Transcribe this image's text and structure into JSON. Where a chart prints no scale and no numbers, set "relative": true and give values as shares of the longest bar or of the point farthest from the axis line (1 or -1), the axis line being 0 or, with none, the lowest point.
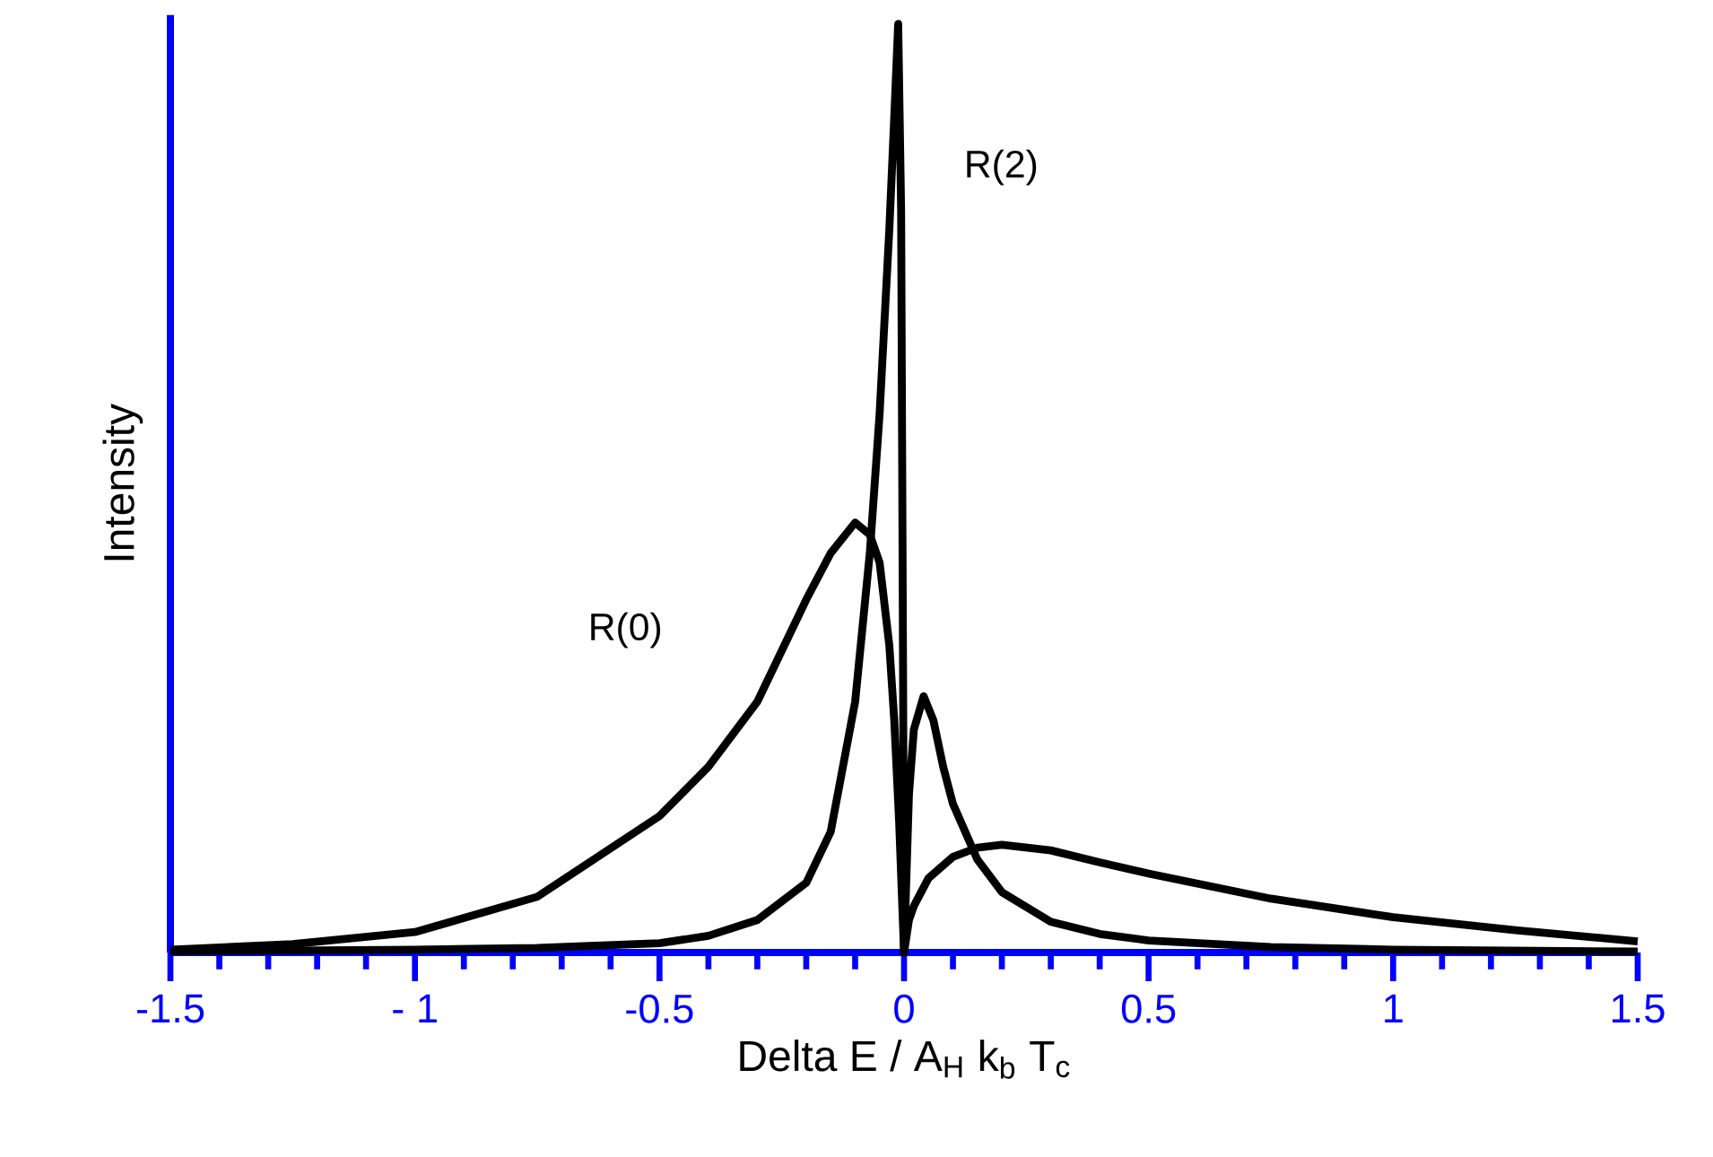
{
  "chart_data": {
    "type": "line",
    "relative": true,
    "xlabel": "Delta E / A$_{H}$ k$_{b}$ T$_{c}$",
    "ylabel": "Intensity",
    "xlim": [
      -1.5,
      1.5
    ],
    "xticks": [
      -1.5,
      {
        "value": -1.4,
        "label": null
      },
      {
        "value": -1.3,
        "label": null
      },
      {
        "value": -1.2,
        "label": null
      },
      {
        "value": -1.1,
        "label": null
      },
      {
        "value": -1,
        "label": "- 1"
      },
      {
        "value": -0.9,
        "label": null
      },
      {
        "value": -0.8,
        "label": null
      },
      {
        "value": -0.7,
        "label": null
      },
      {
        "value": -0.6,
        "label": null
      },
      -0.5,
      {
        "value": -0.4,
        "label": null
      },
      {
        "value": -0.3,
        "label": null
      },
      {
        "value": -0.2,
        "label": null
      },
      {
        "value": -0.1,
        "label": null
      },
      0,
      {
        "value": 0.1,
        "label": null
      },
      {
        "value": 0.2,
        "label": null
      },
      {
        "value": 0.3,
        "label": null
      },
      {
        "value": 0.4,
        "label": null
      },
      0.5,
      {
        "value": 0.6,
        "label": null
      },
      {
        "value": 0.7,
        "label": null
      },
      {
        "value": 0.8,
        "label": null
      },
      {
        "value": 0.9,
        "label": null
      },
      1,
      {
        "value": 1.1,
        "label": null
      },
      {
        "value": 1.2,
        "label": null
      },
      {
        "value": 1.3,
        "label": null
      },
      {
        "value": 1.4,
        "label": null
      },
      1.5
    ],
    "tick_labels": "x",
    "marker": "none",
    "line_style": "solid",
    "series": [
      {
        "name": "R(0)",
        "color": "#000000",
        "x": [
          -1.5,
          -1.25,
          -1.0,
          -0.75,
          -0.5,
          -0.4,
          -0.3,
          -0.2,
          -0.15,
          -0.1,
          -0.07,
          -0.05,
          -0.03,
          -0.02,
          -0.01,
          0,
          0.01,
          0.02,
          0.05,
          0.1,
          0.15,
          0.2,
          0.3,
          0.4,
          0.5,
          0.75,
          1.0,
          1.25,
          1.5
        ],
        "values": [
          0.003,
          0.009,
          0.022,
          0.06,
          0.147,
          0.2,
          0.27,
          0.38,
          0.43,
          0.463,
          0.45,
          0.42,
          0.33,
          0.25,
          0.14,
          0,
          0.035,
          0.05,
          0.08,
          0.103,
          0.113,
          0.116,
          0.11,
          0.097,
          0.085,
          0.058,
          0.038,
          0.024,
          0.012
        ]
      },
      {
        "name": "R(2)",
        "color": "#000000",
        "x": [
          -1.5,
          -1.0,
          -0.75,
          -0.5,
          -0.4,
          -0.3,
          -0.2,
          -0.15,
          -0.1,
          -0.07,
          -0.05,
          -0.03,
          -0.02,
          -0.012,
          -0.006,
          -0.002,
          0,
          0.01,
          0.02,
          0.04,
          0.06,
          0.08,
          0.1,
          0.15,
          0.2,
          0.3,
          0.4,
          0.5,
          0.75,
          1.0,
          1.5
        ],
        "values": [
          0.001,
          0.003,
          0.005,
          0.01,
          0.018,
          0.035,
          0.075,
          0.13,
          0.27,
          0.43,
          0.58,
          0.78,
          0.9,
          1.0,
          0.8,
          0.3,
          0,
          0.17,
          0.24,
          0.276,
          0.25,
          0.2,
          0.16,
          0.1,
          0.065,
          0.033,
          0.02,
          0.013,
          0.006,
          0.003,
          0.001
        ]
      }
    ]
  }
}
